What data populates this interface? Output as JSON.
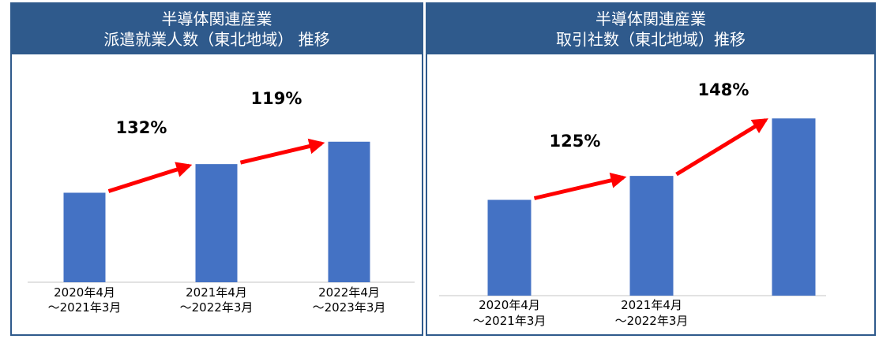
{
  "chart_data": [
    {
      "type": "bar",
      "title": "半導体関連産業",
      "subtitle": "派遣就業人数（東北地域） 推移",
      "categories": [
        [
          "2020年4月",
          "～2021年3月"
        ],
        [
          "2021年4月",
          "～2022年3月"
        ],
        [
          "2022年4月",
          "～2023年3月"
        ]
      ],
      "values": [
        100,
        132,
        157
      ],
      "ylim": [
        0,
        170
      ],
      "growth_labels": [
        "132%",
        "119%"
      ],
      "colors": {
        "bar": "#4472c4",
        "arrow": "#ff0000",
        "header": "#2f5a8c"
      }
    },
    {
      "type": "bar",
      "title": "半導体関連産業",
      "subtitle": "取引社数（東北地域）推移",
      "categories": [
        [
          "2020年4月",
          "～2021年3月"
        ],
        [
          "2021年4月",
          "～2022年3月"
        ],
        [
          "",
          ""
        ]
      ],
      "values": [
        100,
        125,
        185
      ],
      "ylim": [
        0,
        200
      ],
      "growth_labels": [
        "125%",
        "148%"
      ],
      "colors": {
        "bar": "#4472c4",
        "arrow": "#ff0000",
        "header": "#2f5a8c"
      }
    }
  ]
}
